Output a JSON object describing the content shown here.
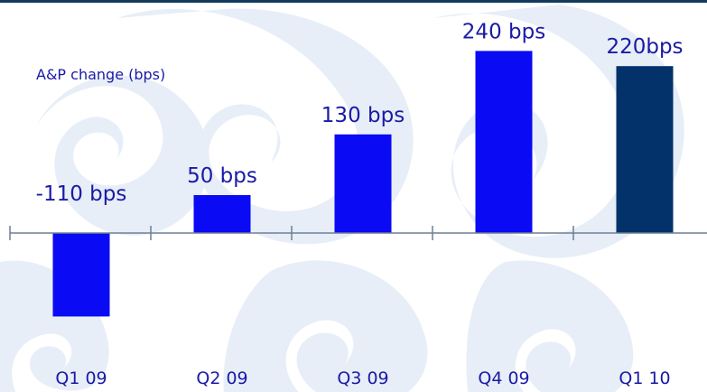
{
  "chart_data": {
    "type": "bar",
    "ylabel": "A&P change (bps)",
    "categories": [
      "Q1 09",
      "Q2 09",
      "Q3 09",
      "Q4 09",
      "Q1 10"
    ],
    "values": [
      -110,
      50,
      130,
      240,
      220
    ],
    "data_labels": [
      "-110 bps",
      "50 bps",
      "130 bps",
      "240 bps",
      "220bps"
    ],
    "colors": [
      "#0a0af5",
      "#0a0af5",
      "#0a0af5",
      "#0a0af5",
      "#03326b"
    ],
    "ylim": [
      -140,
      260
    ],
    "grid": false,
    "legend": "none"
  }
}
